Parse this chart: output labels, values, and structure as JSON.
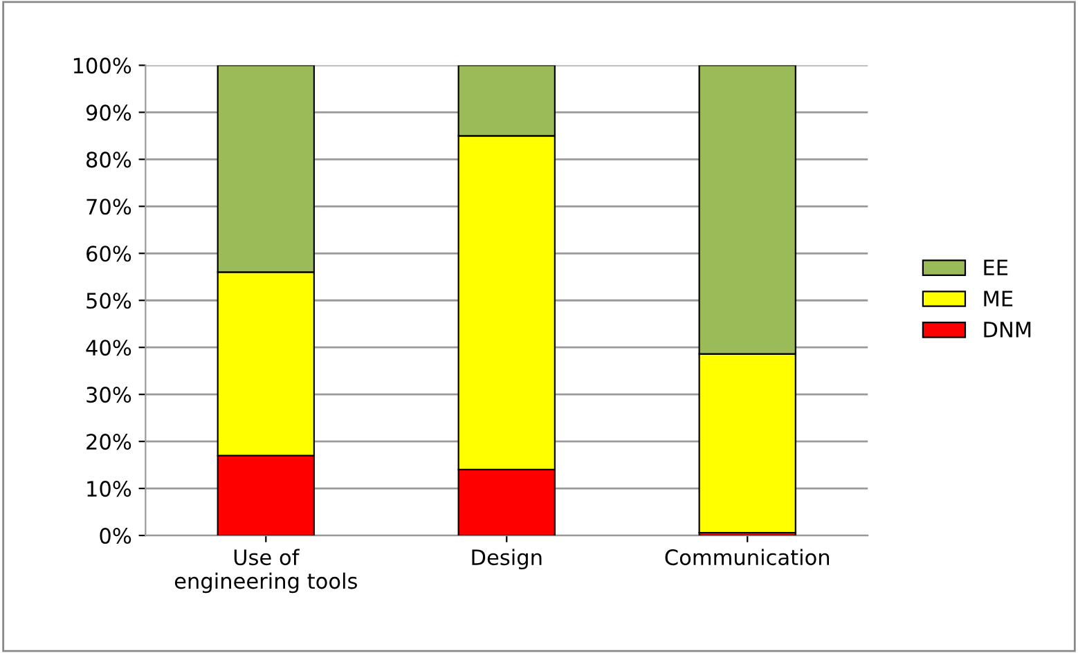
{
  "chart_data": {
    "type": "bar",
    "stacked": true,
    "categories": [
      "Use of\nengineering tools",
      "Design",
      "Communication"
    ],
    "series": [
      {
        "name": "DNM",
        "color": "#ff0000",
        "values": [
          17,
          14,
          0.6
        ]
      },
      {
        "name": "ME",
        "color": "#ffff00",
        "values": [
          39,
          71,
          38
        ]
      },
      {
        "name": "EE",
        "color": "#9bbb59",
        "values": [
          44,
          15,
          61.4
        ]
      }
    ],
    "ylim": [
      0,
      100
    ],
    "yticks": [
      {
        "value": 0,
        "label": "0%"
      },
      {
        "value": 10,
        "label": "10%"
      },
      {
        "value": 20,
        "label": "20%"
      },
      {
        "value": 30,
        "label": "30%"
      },
      {
        "value": 40,
        "label": "40%"
      },
      {
        "value": 50,
        "label": "50%"
      },
      {
        "value": 60,
        "label": "60%"
      },
      {
        "value": 70,
        "label": "70%"
      },
      {
        "value": 80,
        "label": "80%"
      },
      {
        "value": 90,
        "label": "90%"
      },
      {
        "value": 100,
        "label": "100%"
      }
    ],
    "grid": "y",
    "legend": "right"
  }
}
